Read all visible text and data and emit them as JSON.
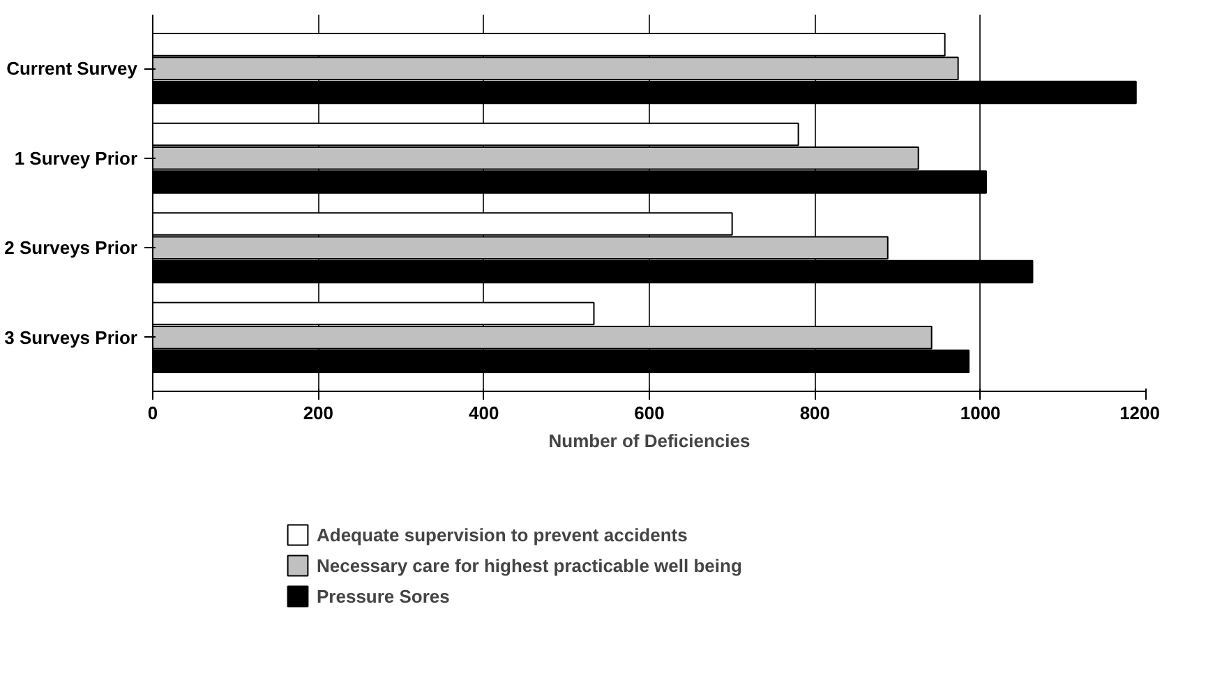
{
  "chart_data": {
    "type": "bar",
    "orientation": "horizontal",
    "xlabel": "Number of Deficiencies",
    "categories": [
      "Current Survey",
      "1 Survey Prior",
      "2 Surveys Prior",
      "3 Surveys Prior"
    ],
    "series": [
      {
        "name": "Adequate supervision to prevent accidents",
        "color": "#ffffff",
        "values": [
          957,
          780,
          700,
          533
        ]
      },
      {
        "name": "Necessary care for highest practicable well being",
        "color": "#c0c0c0",
        "values": [
          973,
          925,
          888,
          941
        ]
      },
      {
        "name": "Pressure Sores",
        "color": "#000000",
        "values": [
          1188,
          1007,
          1063,
          986
        ]
      }
    ],
    "xlim": [
      0,
      1200
    ],
    "xticks": [
      0,
      200,
      400,
      600,
      800,
      1000,
      1200
    ],
    "grid": "x",
    "legend": "bottom"
  }
}
